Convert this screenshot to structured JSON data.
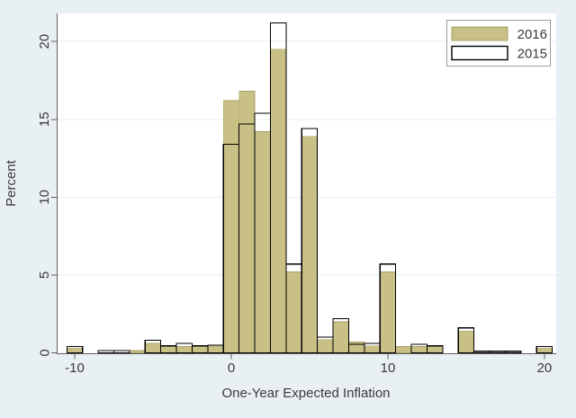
{
  "figure": {
    "background_color": "#e9f0f3",
    "plot_background_color": "#ffffff",
    "grid_color": "#e3edef",
    "axis_color": "#5f5f5f",
    "text_color": "#3a3a3a",
    "legend_border_color": "#9a9a9a"
  },
  "chart_data": {
    "type": "bar",
    "subtype": "overlaid-histogram",
    "title": "",
    "xlabel": "One-Year Expected Inflation",
    "ylabel": "Percent",
    "xlim": [
      -11.15,
      20.75
    ],
    "ylim": [
      0,
      21.8
    ],
    "x_ticks": [
      -10,
      0,
      10,
      20
    ],
    "x_tick_labels": [
      "-10",
      "0",
      "10",
      "20"
    ],
    "y_ticks": [
      0,
      5,
      10,
      15,
      20
    ],
    "y_tick_labels": [
      "0",
      "5",
      "10",
      "15",
      "20"
    ],
    "grid": "horizontal",
    "legend_position": "top-right-inside",
    "bin_width": 1,
    "series": [
      {
        "name": "2016",
        "style": "filled",
        "fill_color": "#c9c086",
        "edge_color": "#a9a066"
      },
      {
        "name": "2015",
        "style": "outline",
        "fill_color": "none",
        "edge_color": "#000000"
      }
    ],
    "bins": [
      {
        "x": -10,
        "pct_2016": 0.3,
        "pct_2015": 0.4
      },
      {
        "x": -8,
        "pct_2016": 0,
        "pct_2015": 0.15
      },
      {
        "x": -7,
        "pct_2016": 0,
        "pct_2015": 0.15
      },
      {
        "x": -6,
        "pct_2016": 0.15,
        "pct_2015": 0
      },
      {
        "x": -5,
        "pct_2016": 0.6,
        "pct_2015": 0.8
      },
      {
        "x": -4,
        "pct_2016": 0.45,
        "pct_2015": 0.45
      },
      {
        "x": -3,
        "pct_2016": 0.4,
        "pct_2015": 0.6
      },
      {
        "x": -2,
        "pct_2016": 0.45,
        "pct_2015": 0.45
      },
      {
        "x": -1,
        "pct_2016": 0.5,
        "pct_2015": 0.5
      },
      {
        "x": 0,
        "pct_2016": 16.2,
        "pct_2015": 13.4
      },
      {
        "x": 1,
        "pct_2016": 16.8,
        "pct_2015": 14.7
      },
      {
        "x": 2,
        "pct_2016": 14.2,
        "pct_2015": 15.4
      },
      {
        "x": 3,
        "pct_2016": 19.5,
        "pct_2015": 21.2
      },
      {
        "x": 4,
        "pct_2016": 5.2,
        "pct_2015": 5.7
      },
      {
        "x": 5,
        "pct_2016": 13.9,
        "pct_2015": 14.4
      },
      {
        "x": 6,
        "pct_2016": 0.85,
        "pct_2015": 1.0
      },
      {
        "x": 7,
        "pct_2016": 2.0,
        "pct_2015": 2.2
      },
      {
        "x": 8,
        "pct_2016": 0.7,
        "pct_2015": 0.55
      },
      {
        "x": 9,
        "pct_2016": 0.45,
        "pct_2015": 0.6
      },
      {
        "x": 10,
        "pct_2016": 5.2,
        "pct_2015": 5.7
      },
      {
        "x": 11,
        "pct_2016": 0.4,
        "pct_2015": 0
      },
      {
        "x": 12,
        "pct_2016": 0.4,
        "pct_2015": 0.55
      },
      {
        "x": 13,
        "pct_2016": 0.45,
        "pct_2015": 0.45
      },
      {
        "x": 15,
        "pct_2016": 1.4,
        "pct_2015": 1.6
      },
      {
        "x": 16,
        "pct_2016": 0,
        "pct_2015": 0.1
      },
      {
        "x": 17,
        "pct_2016": 0,
        "pct_2015": 0.1
      },
      {
        "x": 18,
        "pct_2016": 0,
        "pct_2015": 0.1
      },
      {
        "x": 20,
        "pct_2016": 0.3,
        "pct_2015": 0.4
      }
    ]
  }
}
